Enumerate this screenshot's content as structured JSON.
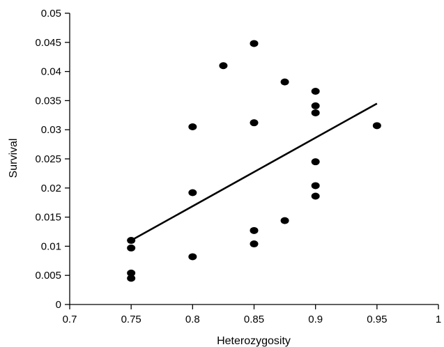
{
  "chart_data": {
    "type": "scatter",
    "xlabel": "Heterozygosity",
    "ylabel": "Survival",
    "xlim": [
      0.7,
      1.0
    ],
    "ylim": [
      0,
      0.05
    ],
    "x_ticks": [
      "0.7",
      "0.75",
      "0.8",
      "0.85",
      "0.9",
      "0.95",
      "1"
    ],
    "y_ticks": [
      "0",
      "0.005",
      "0.01",
      "0.015",
      "0.02",
      "0.025",
      "0.03",
      "0.035",
      "0.04",
      "0.045",
      "0.05"
    ],
    "grid": false,
    "series": [
      {
        "points": [
          {
            "x": 0.75,
            "y": 0.011
          },
          {
            "x": 0.75,
            "y": 0.0097
          },
          {
            "x": 0.75,
            "y": 0.0054
          },
          {
            "x": 0.75,
            "y": 0.0045
          },
          {
            "x": 0.8,
            "y": 0.0305
          },
          {
            "x": 0.8,
            "y": 0.0192
          },
          {
            "x": 0.8,
            "y": 0.0082
          },
          {
            "x": 0.825,
            "y": 0.041
          },
          {
            "x": 0.85,
            "y": 0.0448
          },
          {
            "x": 0.85,
            "y": 0.0312
          },
          {
            "x": 0.85,
            "y": 0.0127
          },
          {
            "x": 0.85,
            "y": 0.0104
          },
          {
            "x": 0.875,
            "y": 0.0382
          },
          {
            "x": 0.875,
            "y": 0.0144
          },
          {
            "x": 0.9,
            "y": 0.0366
          },
          {
            "x": 0.9,
            "y": 0.0341
          },
          {
            "x": 0.9,
            "y": 0.0329
          },
          {
            "x": 0.9,
            "y": 0.0245
          },
          {
            "x": 0.9,
            "y": 0.0204
          },
          {
            "x": 0.9,
            "y": 0.0186
          },
          {
            "x": 0.95,
            "y": 0.0307
          }
        ]
      }
    ],
    "trendline": {
      "x1": 0.75,
      "y1": 0.011,
      "x2": 0.95,
      "y2": 0.0345
    },
    "colors": {
      "points": "#000000",
      "line": "#000000",
      "axis": "#000000"
    }
  }
}
